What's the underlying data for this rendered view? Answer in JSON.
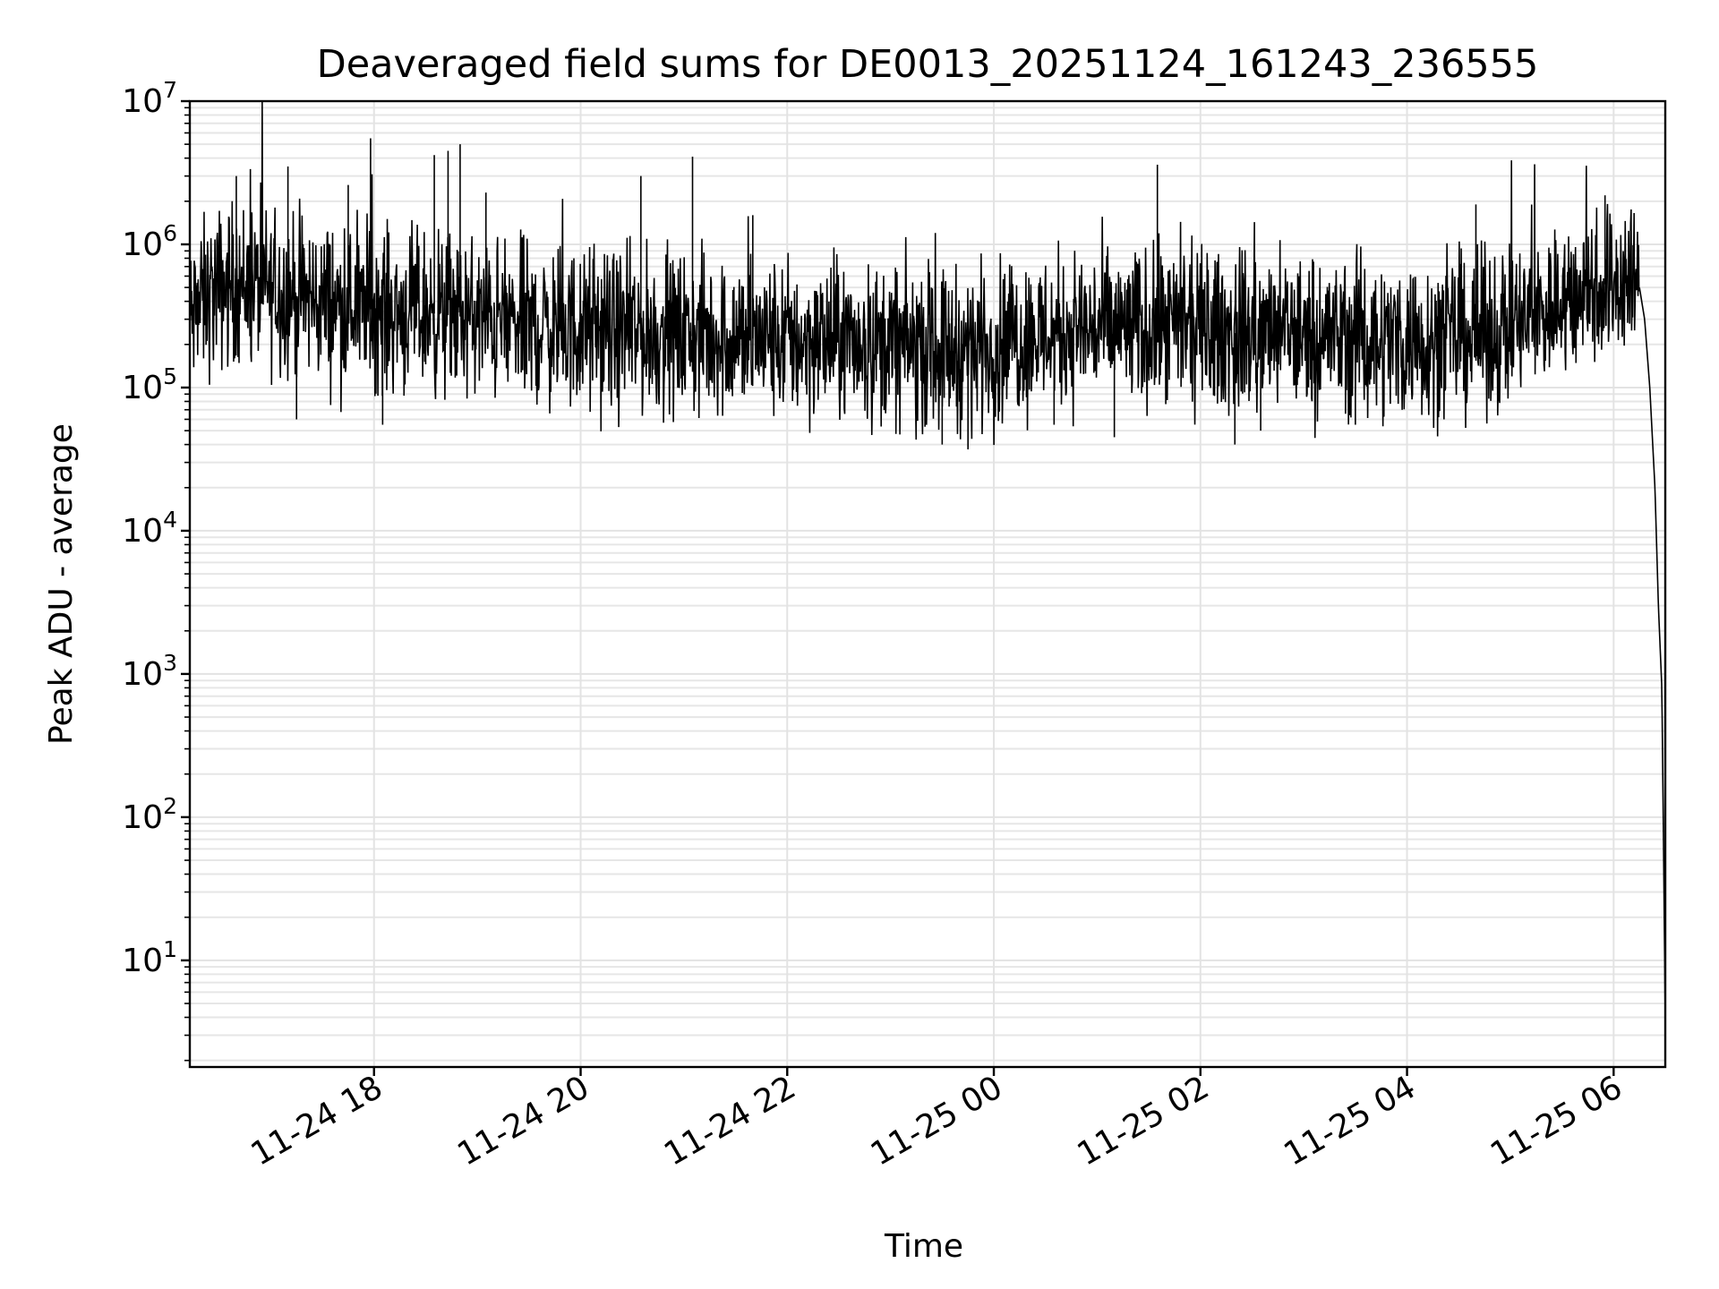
{
  "chart_data": {
    "type": "line",
    "title": "Deaveraged field sums for DE0013_20251124_161243_236555",
    "xlabel": "Time",
    "ylabel": "Peak ADU - average",
    "yscale": "log",
    "ylim": [
      1.8,
      10000000
    ],
    "xlim": [
      "2025-11-24 16:13",
      "2025-11-25 06:30"
    ],
    "grid": true,
    "x_ticks": [
      {
        "value": "2025-11-24 18:00",
        "label": "11-24 18"
      },
      {
        "value": "2025-11-24 20:00",
        "label": "11-24 20"
      },
      {
        "value": "2025-11-24 22:00",
        "label": "11-24 22"
      },
      {
        "value": "2025-11-25 00:00",
        "label": "11-25 00"
      },
      {
        "value": "2025-11-25 02:00",
        "label": "11-25 02"
      },
      {
        "value": "2025-11-25 04:00",
        "label": "11-25 04"
      },
      {
        "value": "2025-11-25 06:00",
        "label": "11-25 06"
      }
    ],
    "y_ticks": [
      {
        "value": 10,
        "base": "10",
        "exp": "1"
      },
      {
        "value": 100,
        "base": "10",
        "exp": "2"
      },
      {
        "value": 1000,
        "base": "10",
        "exp": "3"
      },
      {
        "value": 10000,
        "base": "10",
        "exp": "4"
      },
      {
        "value": 100000,
        "base": "10",
        "exp": "5"
      },
      {
        "value": 1000000,
        "base": "10",
        "exp": "6"
      },
      {
        "value": 10000000,
        "base": "10",
        "exp": "7"
      }
    ],
    "series": [
      {
        "color": "#000000",
        "x": [
          "2025-11-24 16:13",
          "2025-11-24 16:20",
          "2025-11-24 16:30",
          "2025-11-24 16:40",
          "2025-11-24 16:50",
          "2025-11-24 17:00",
          "2025-11-24 17:10",
          "2025-11-24 17:20",
          "2025-11-24 17:30",
          "2025-11-24 17:40",
          "2025-11-24 17:50",
          "2025-11-24 18:00",
          "2025-11-24 18:15",
          "2025-11-24 18:30",
          "2025-11-24 18:45",
          "2025-11-24 19:00",
          "2025-11-24 19:20",
          "2025-11-24 19:40",
          "2025-11-24 20:00",
          "2025-11-24 20:20",
          "2025-11-24 20:40",
          "2025-11-24 21:00",
          "2025-11-24 21:20",
          "2025-11-24 21:40",
          "2025-11-24 22:00",
          "2025-11-24 22:20",
          "2025-11-24 22:40",
          "2025-11-24 23:00",
          "2025-11-24 23:20",
          "2025-11-24 23:40",
          "2025-11-25 00:00",
          "2025-11-25 00:20",
          "2025-11-25 00:40",
          "2025-11-25 01:00",
          "2025-11-25 01:20",
          "2025-11-25 01:40",
          "2025-11-25 02:00",
          "2025-11-25 02:20",
          "2025-11-25 02:40",
          "2025-11-25 03:00",
          "2025-11-25 03:20",
          "2025-11-25 03:40",
          "2025-11-25 04:00",
          "2025-11-25 04:20",
          "2025-11-25 04:40",
          "2025-11-25 05:00",
          "2025-11-25 05:15",
          "2025-11-25 05:30",
          "2025-11-25 05:45",
          "2025-11-25 06:00",
          "2025-11-25 06:10",
          "2025-11-25 06:15",
          "2025-11-25 06:18",
          "2025-11-25 06:21",
          "2025-11-25 06:24",
          "2025-11-25 06:26",
          "2025-11-25 06:28",
          "2025-11-25 06:29",
          "2025-11-25 06:30"
        ],
        "y": [
          280000,
          400000,
          480000,
          550000,
          500000,
          480000,
          450000,
          420000,
          400000,
          380000,
          360000,
          350000,
          340000,
          330000,
          320000,
          300000,
          280000,
          260000,
          250000,
          240000,
          235000,
          230000,
          225000,
          220000,
          215000,
          210000,
          205000,
          200000,
          190000,
          185000,
          200000,
          230000,
          250000,
          260000,
          255000,
          250000,
          245000,
          240000,
          235000,
          230000,
          225000,
          220000,
          215000,
          220000,
          230000,
          260000,
          320000,
          400000,
          480000,
          550000,
          550000,
          500000,
          300000,
          100000,
          20000,
          3000,
          800,
          60,
          3.8
        ]
      }
    ],
    "spikes": [
      {
        "x": "2025-11-24 16:40",
        "y": 3000000
      },
      {
        "x": "2025-11-24 17:10",
        "y": 3500000
      },
      {
        "x": "2025-11-24 17:45",
        "y": 2600000
      },
      {
        "x": "2025-11-24 17:58",
        "y": 5500000
      },
      {
        "x": "2025-11-24 18:35",
        "y": 4200000
      },
      {
        "x": "2025-11-24 18:43",
        "y": 4500000
      },
      {
        "x": "2025-11-24 18:50",
        "y": 5000000
      },
      {
        "x": "2025-11-24 19:05",
        "y": 2300000
      },
      {
        "x": "2025-11-24 20:35",
        "y": 3000000
      },
      {
        "x": "2025-11-24 21:05",
        "y": 4100000
      },
      {
        "x": "2025-11-24 21:40",
        "y": 1600000
      },
      {
        "x": "2025-11-25 01:35",
        "y": 3600000
      },
      {
        "x": "2025-11-25 04:40",
        "y": 1900000
      },
      {
        "x": "2025-11-25 05:55",
        "y": 2200000
      }
    ],
    "dips": [
      {
        "x": "2025-11-24 17:15",
        "y": 60000
      },
      {
        "x": "2025-11-24 18:05",
        "y": 55000
      },
      {
        "x": "2025-11-24 23:30",
        "y": 40000
      },
      {
        "x": "2025-11-24 23:45",
        "y": 37000
      },
      {
        "x": "2025-11-25 00:35",
        "y": 55000
      },
      {
        "x": "2025-11-25 01:10",
        "y": 45000
      },
      {
        "x": "2025-11-25 02:20",
        "y": 40000
      },
      {
        "x": "2025-11-25 02:35",
        "y": 50000
      },
      {
        "x": "2025-11-25 03:30",
        "y": 55000
      }
    ]
  }
}
